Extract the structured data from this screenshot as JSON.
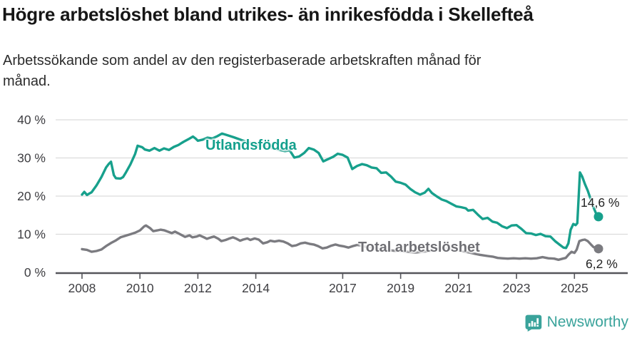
{
  "header": {
    "title": "Högre arbetslöshet bland utrikes- än inrikesfödda i Skellefteå",
    "subtitle_line1": "Arbetssökande som andel av den registerbaserade arbetskraften månad för",
    "subtitle_line2": "månad."
  },
  "branding": {
    "logo_icon": "newsworthy-logo-icon",
    "logo_text": "Newsworthy",
    "color": "#3aa39b"
  },
  "colors": {
    "accent_teal": "#17a08c",
    "line_gray": "#7b7b80",
    "grid": "#dcdcdc",
    "axis": "#55555a",
    "tick_text": "#3e3e42"
  },
  "chart_data": {
    "type": "line",
    "title": "Högre arbetslöshet bland utrikes- än inrikesfödda i Skellefteå",
    "subtitle": "Arbetssökande som andel av den registerbaserade arbetskraften månad för månad.",
    "xlabel": "",
    "ylabel": "",
    "grid": "horizontal",
    "legend_position": "inline-labels",
    "xlim": [
      2007.09,
      2026.84
    ],
    "ylim": [
      0,
      40
    ],
    "x_tick_years": [
      2008,
      2010,
      2012,
      2014,
      2017,
      2019,
      2021,
      2023,
      2025
    ],
    "x_tick_labels": [
      "2008",
      "2010",
      "2012",
      "2014",
      "2017",
      "2019",
      "2021",
      "2023",
      "2025"
    ],
    "y_ticks": [
      {
        "value": 0,
        "label": "0 %"
      },
      {
        "value": 10,
        "label": "10 %"
      },
      {
        "value": 20,
        "label": "20 %"
      },
      {
        "value": 30,
        "label": "30 %"
      },
      {
        "value": 40,
        "label": "40 %"
      }
    ],
    "series": [
      {
        "id": "utlandsfodda",
        "name": "Utlandsfödda",
        "color": "#17a08c",
        "end_label": "14,6 %",
        "end_value": 14.6,
        "points": [
          [
            2008.0,
            20.4
          ],
          [
            2008.08,
            21.1
          ],
          [
            2008.17,
            20.3
          ],
          [
            2008.33,
            21.0
          ],
          [
            2008.5,
            22.8
          ],
          [
            2008.67,
            25.0
          ],
          [
            2008.83,
            27.5
          ],
          [
            2008.92,
            28.4
          ],
          [
            2009.0,
            29.0
          ],
          [
            2009.1,
            25.5
          ],
          [
            2009.17,
            24.7
          ],
          [
            2009.33,
            24.6
          ],
          [
            2009.42,
            25.0
          ],
          [
            2009.5,
            26.0
          ],
          [
            2009.67,
            28.3
          ],
          [
            2009.83,
            31.0
          ],
          [
            2009.92,
            33.2
          ],
          [
            2010.08,
            32.8
          ],
          [
            2010.17,
            32.2
          ],
          [
            2010.33,
            31.9
          ],
          [
            2010.5,
            32.6
          ],
          [
            2010.67,
            31.9
          ],
          [
            2010.83,
            32.5
          ],
          [
            2011.0,
            32.1
          ],
          [
            2011.17,
            32.9
          ],
          [
            2011.33,
            33.4
          ],
          [
            2011.5,
            34.2
          ],
          [
            2011.67,
            34.9
          ],
          [
            2011.83,
            35.6
          ],
          [
            2011.92,
            35.1
          ],
          [
            2012.0,
            34.5
          ],
          [
            2012.17,
            34.8
          ],
          [
            2012.33,
            35.3
          ],
          [
            2012.5,
            35.1
          ],
          [
            2012.67,
            35.7
          ],
          [
            2012.83,
            36.4
          ],
          [
            2013.0,
            36.0
          ],
          [
            2013.25,
            35.4
          ],
          [
            2013.5,
            34.7
          ],
          [
            2013.75,
            34.1
          ],
          [
            2014.0,
            33.6
          ],
          [
            2014.25,
            33.1
          ],
          [
            2014.5,
            32.7
          ],
          [
            2014.75,
            32.2
          ],
          [
            2015.0,
            31.8
          ],
          [
            2015.17,
            32.0
          ],
          [
            2015.33,
            30.1
          ],
          [
            2015.5,
            30.4
          ],
          [
            2015.67,
            31.3
          ],
          [
            2015.83,
            32.6
          ],
          [
            2016.0,
            32.2
          ],
          [
            2016.17,
            31.3
          ],
          [
            2016.33,
            29.1
          ],
          [
            2016.5,
            29.7
          ],
          [
            2016.67,
            30.3
          ],
          [
            2016.83,
            31.1
          ],
          [
            2017.0,
            30.8
          ],
          [
            2017.17,
            30.1
          ],
          [
            2017.33,
            27.1
          ],
          [
            2017.5,
            27.9
          ],
          [
            2017.67,
            28.4
          ],
          [
            2017.83,
            28.1
          ],
          [
            2018.0,
            27.5
          ],
          [
            2018.17,
            27.3
          ],
          [
            2018.33,
            26.1
          ],
          [
            2018.5,
            26.2
          ],
          [
            2018.67,
            25.1
          ],
          [
            2018.83,
            23.8
          ],
          [
            2019.0,
            23.5
          ],
          [
            2019.17,
            23.0
          ],
          [
            2019.33,
            21.9
          ],
          [
            2019.5,
            21.0
          ],
          [
            2019.67,
            20.4
          ],
          [
            2019.83,
            20.9
          ],
          [
            2019.96,
            21.9
          ],
          [
            2020.08,
            20.8
          ],
          [
            2020.25,
            19.9
          ],
          [
            2020.42,
            19.1
          ],
          [
            2020.58,
            18.7
          ],
          [
            2020.75,
            18.0
          ],
          [
            2020.92,
            17.3
          ],
          [
            2021.08,
            17.1
          ],
          [
            2021.25,
            16.8
          ],
          [
            2021.33,
            16.2
          ],
          [
            2021.5,
            16.4
          ],
          [
            2021.67,
            15.1
          ],
          [
            2021.83,
            14.0
          ],
          [
            2022.0,
            14.3
          ],
          [
            2022.17,
            13.3
          ],
          [
            2022.33,
            13.0
          ],
          [
            2022.5,
            12.1
          ],
          [
            2022.67,
            11.6
          ],
          [
            2022.83,
            12.3
          ],
          [
            2023.0,
            12.4
          ],
          [
            2023.17,
            11.4
          ],
          [
            2023.33,
            10.3
          ],
          [
            2023.5,
            10.2
          ],
          [
            2023.67,
            9.8
          ],
          [
            2023.83,
            10.1
          ],
          [
            2024.0,
            9.5
          ],
          [
            2024.17,
            9.4
          ],
          [
            2024.33,
            8.2
          ],
          [
            2024.5,
            7.2
          ],
          [
            2024.62,
            6.5
          ],
          [
            2024.71,
            6.4
          ],
          [
            2024.79,
            7.6
          ],
          [
            2024.87,
            11.2
          ],
          [
            2024.96,
            12.7
          ],
          [
            2025.04,
            12.4
          ],
          [
            2025.1,
            12.9
          ],
          [
            2025.19,
            26.2
          ],
          [
            2025.27,
            25.1
          ],
          [
            2025.36,
            23.2
          ],
          [
            2025.46,
            21.4
          ],
          [
            2025.56,
            19.2
          ],
          [
            2025.65,
            17.2
          ],
          [
            2025.75,
            15.4
          ],
          [
            2025.83,
            14.6
          ]
        ]
      },
      {
        "id": "total",
        "name": "Total arbetslöshet",
        "color": "#7b7b80",
        "end_label": "6,2 %",
        "end_value": 6.2,
        "points": [
          [
            2008.0,
            6.1
          ],
          [
            2008.17,
            5.9
          ],
          [
            2008.33,
            5.4
          ],
          [
            2008.5,
            5.6
          ],
          [
            2008.67,
            6.0
          ],
          [
            2008.83,
            6.9
          ],
          [
            2009.0,
            7.7
          ],
          [
            2009.17,
            8.4
          ],
          [
            2009.33,
            9.2
          ],
          [
            2009.5,
            9.6
          ],
          [
            2009.67,
            10.0
          ],
          [
            2009.83,
            10.4
          ],
          [
            2010.0,
            11.0
          ],
          [
            2010.15,
            12.1
          ],
          [
            2010.21,
            12.3
          ],
          [
            2010.35,
            11.6
          ],
          [
            2010.46,
            10.8
          ],
          [
            2010.6,
            11.0
          ],
          [
            2010.71,
            11.2
          ],
          [
            2010.85,
            11.0
          ],
          [
            2010.96,
            10.7
          ],
          [
            2011.1,
            10.3
          ],
          [
            2011.21,
            10.7
          ],
          [
            2011.31,
            10.3
          ],
          [
            2011.46,
            9.7
          ],
          [
            2011.56,
            9.3
          ],
          [
            2011.71,
            9.7
          ],
          [
            2011.81,
            9.2
          ],
          [
            2011.96,
            9.4
          ],
          [
            2012.06,
            9.7
          ],
          [
            2012.21,
            9.2
          ],
          [
            2012.31,
            8.8
          ],
          [
            2012.46,
            9.2
          ],
          [
            2012.56,
            9.4
          ],
          [
            2012.71,
            8.8
          ],
          [
            2012.81,
            8.2
          ],
          [
            2012.96,
            8.5
          ],
          [
            2013.06,
            8.8
          ],
          [
            2013.21,
            9.2
          ],
          [
            2013.31,
            8.9
          ],
          [
            2013.46,
            8.3
          ],
          [
            2013.56,
            8.6
          ],
          [
            2013.71,
            8.9
          ],
          [
            2013.81,
            8.5
          ],
          [
            2013.96,
            8.9
          ],
          [
            2014.1,
            8.6
          ],
          [
            2014.25,
            7.6
          ],
          [
            2014.4,
            7.9
          ],
          [
            2014.5,
            8.3
          ],
          [
            2014.65,
            8.1
          ],
          [
            2014.8,
            8.3
          ],
          [
            2014.95,
            8.1
          ],
          [
            2015.1,
            7.6
          ],
          [
            2015.25,
            6.9
          ],
          [
            2015.4,
            7.1
          ],
          [
            2015.55,
            7.6
          ],
          [
            2015.7,
            7.8
          ],
          [
            2015.85,
            7.5
          ],
          [
            2016.0,
            7.3
          ],
          [
            2016.15,
            6.9
          ],
          [
            2016.3,
            6.3
          ],
          [
            2016.45,
            6.5
          ],
          [
            2016.6,
            7.0
          ],
          [
            2016.75,
            7.3
          ],
          [
            2016.9,
            7.0
          ],
          [
            2017.05,
            6.8
          ],
          [
            2017.2,
            6.5
          ],
          [
            2017.35,
            6.9
          ],
          [
            2017.5,
            7.2
          ],
          [
            2017.65,
            7.0
          ],
          [
            2017.8,
            6.7
          ],
          [
            2018.0,
            6.5
          ],
          [
            2018.25,
            6.2
          ],
          [
            2018.5,
            6.0
          ],
          [
            2018.75,
            5.7
          ],
          [
            2019.0,
            5.6
          ],
          [
            2019.25,
            5.4
          ],
          [
            2019.5,
            5.2
          ],
          [
            2019.75,
            5.4
          ],
          [
            2020.0,
            5.6
          ],
          [
            2020.25,
            6.2
          ],
          [
            2020.5,
            6.4
          ],
          [
            2020.75,
            6.1
          ],
          [
            2021.0,
            5.8
          ],
          [
            2021.25,
            5.4
          ],
          [
            2021.5,
            5.0
          ],
          [
            2021.75,
            4.6
          ],
          [
            2022.0,
            4.3
          ],
          [
            2022.2,
            4.1
          ],
          [
            2022.35,
            3.8
          ],
          [
            2022.5,
            3.7
          ],
          [
            2022.7,
            3.6
          ],
          [
            2022.9,
            3.7
          ],
          [
            2023.1,
            3.6
          ],
          [
            2023.3,
            3.7
          ],
          [
            2023.5,
            3.6
          ],
          [
            2023.7,
            3.7
          ],
          [
            2023.9,
            4.0
          ],
          [
            2024.1,
            3.7
          ],
          [
            2024.3,
            3.6
          ],
          [
            2024.45,
            3.3
          ],
          [
            2024.6,
            3.6
          ],
          [
            2024.7,
            3.8
          ],
          [
            2024.8,
            4.7
          ],
          [
            2024.9,
            5.4
          ],
          [
            2025.0,
            5.1
          ],
          [
            2025.08,
            6.0
          ],
          [
            2025.17,
            8.2
          ],
          [
            2025.28,
            8.5
          ],
          [
            2025.36,
            8.6
          ],
          [
            2025.46,
            8.2
          ],
          [
            2025.56,
            7.4
          ],
          [
            2025.65,
            6.7
          ],
          [
            2025.75,
            6.3
          ],
          [
            2025.83,
            6.2
          ]
        ]
      }
    ]
  }
}
